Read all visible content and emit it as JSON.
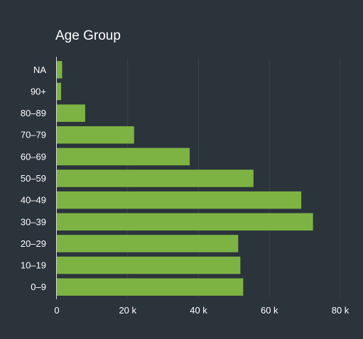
{
  "chart_data": {
    "type": "bar",
    "orientation": "horizontal",
    "title": "Age Group",
    "categories": [
      "NA",
      "90+",
      "80–89",
      "70–79",
      "60–69",
      "50–59",
      "40–49",
      "30–39",
      "20–29",
      "10–19",
      "0–9"
    ],
    "values": [
      1500,
      1200,
      8000,
      21800,
      37500,
      55500,
      69000,
      72300,
      51200,
      51800,
      52600
    ],
    "xlim": [
      0,
      82000
    ],
    "xticks": [
      0,
      20000,
      40000,
      60000,
      80000
    ],
    "xtick_labels": [
      "0",
      "20 k",
      "40 k",
      "60 k",
      "80 k"
    ],
    "xlabel": "",
    "ylabel": "",
    "grid": true,
    "colors": {
      "bar": "#7db343",
      "background": "#2b333b",
      "grid": "#3a434c",
      "axis": "#d8dcdf",
      "text": "#ffffff"
    }
  }
}
